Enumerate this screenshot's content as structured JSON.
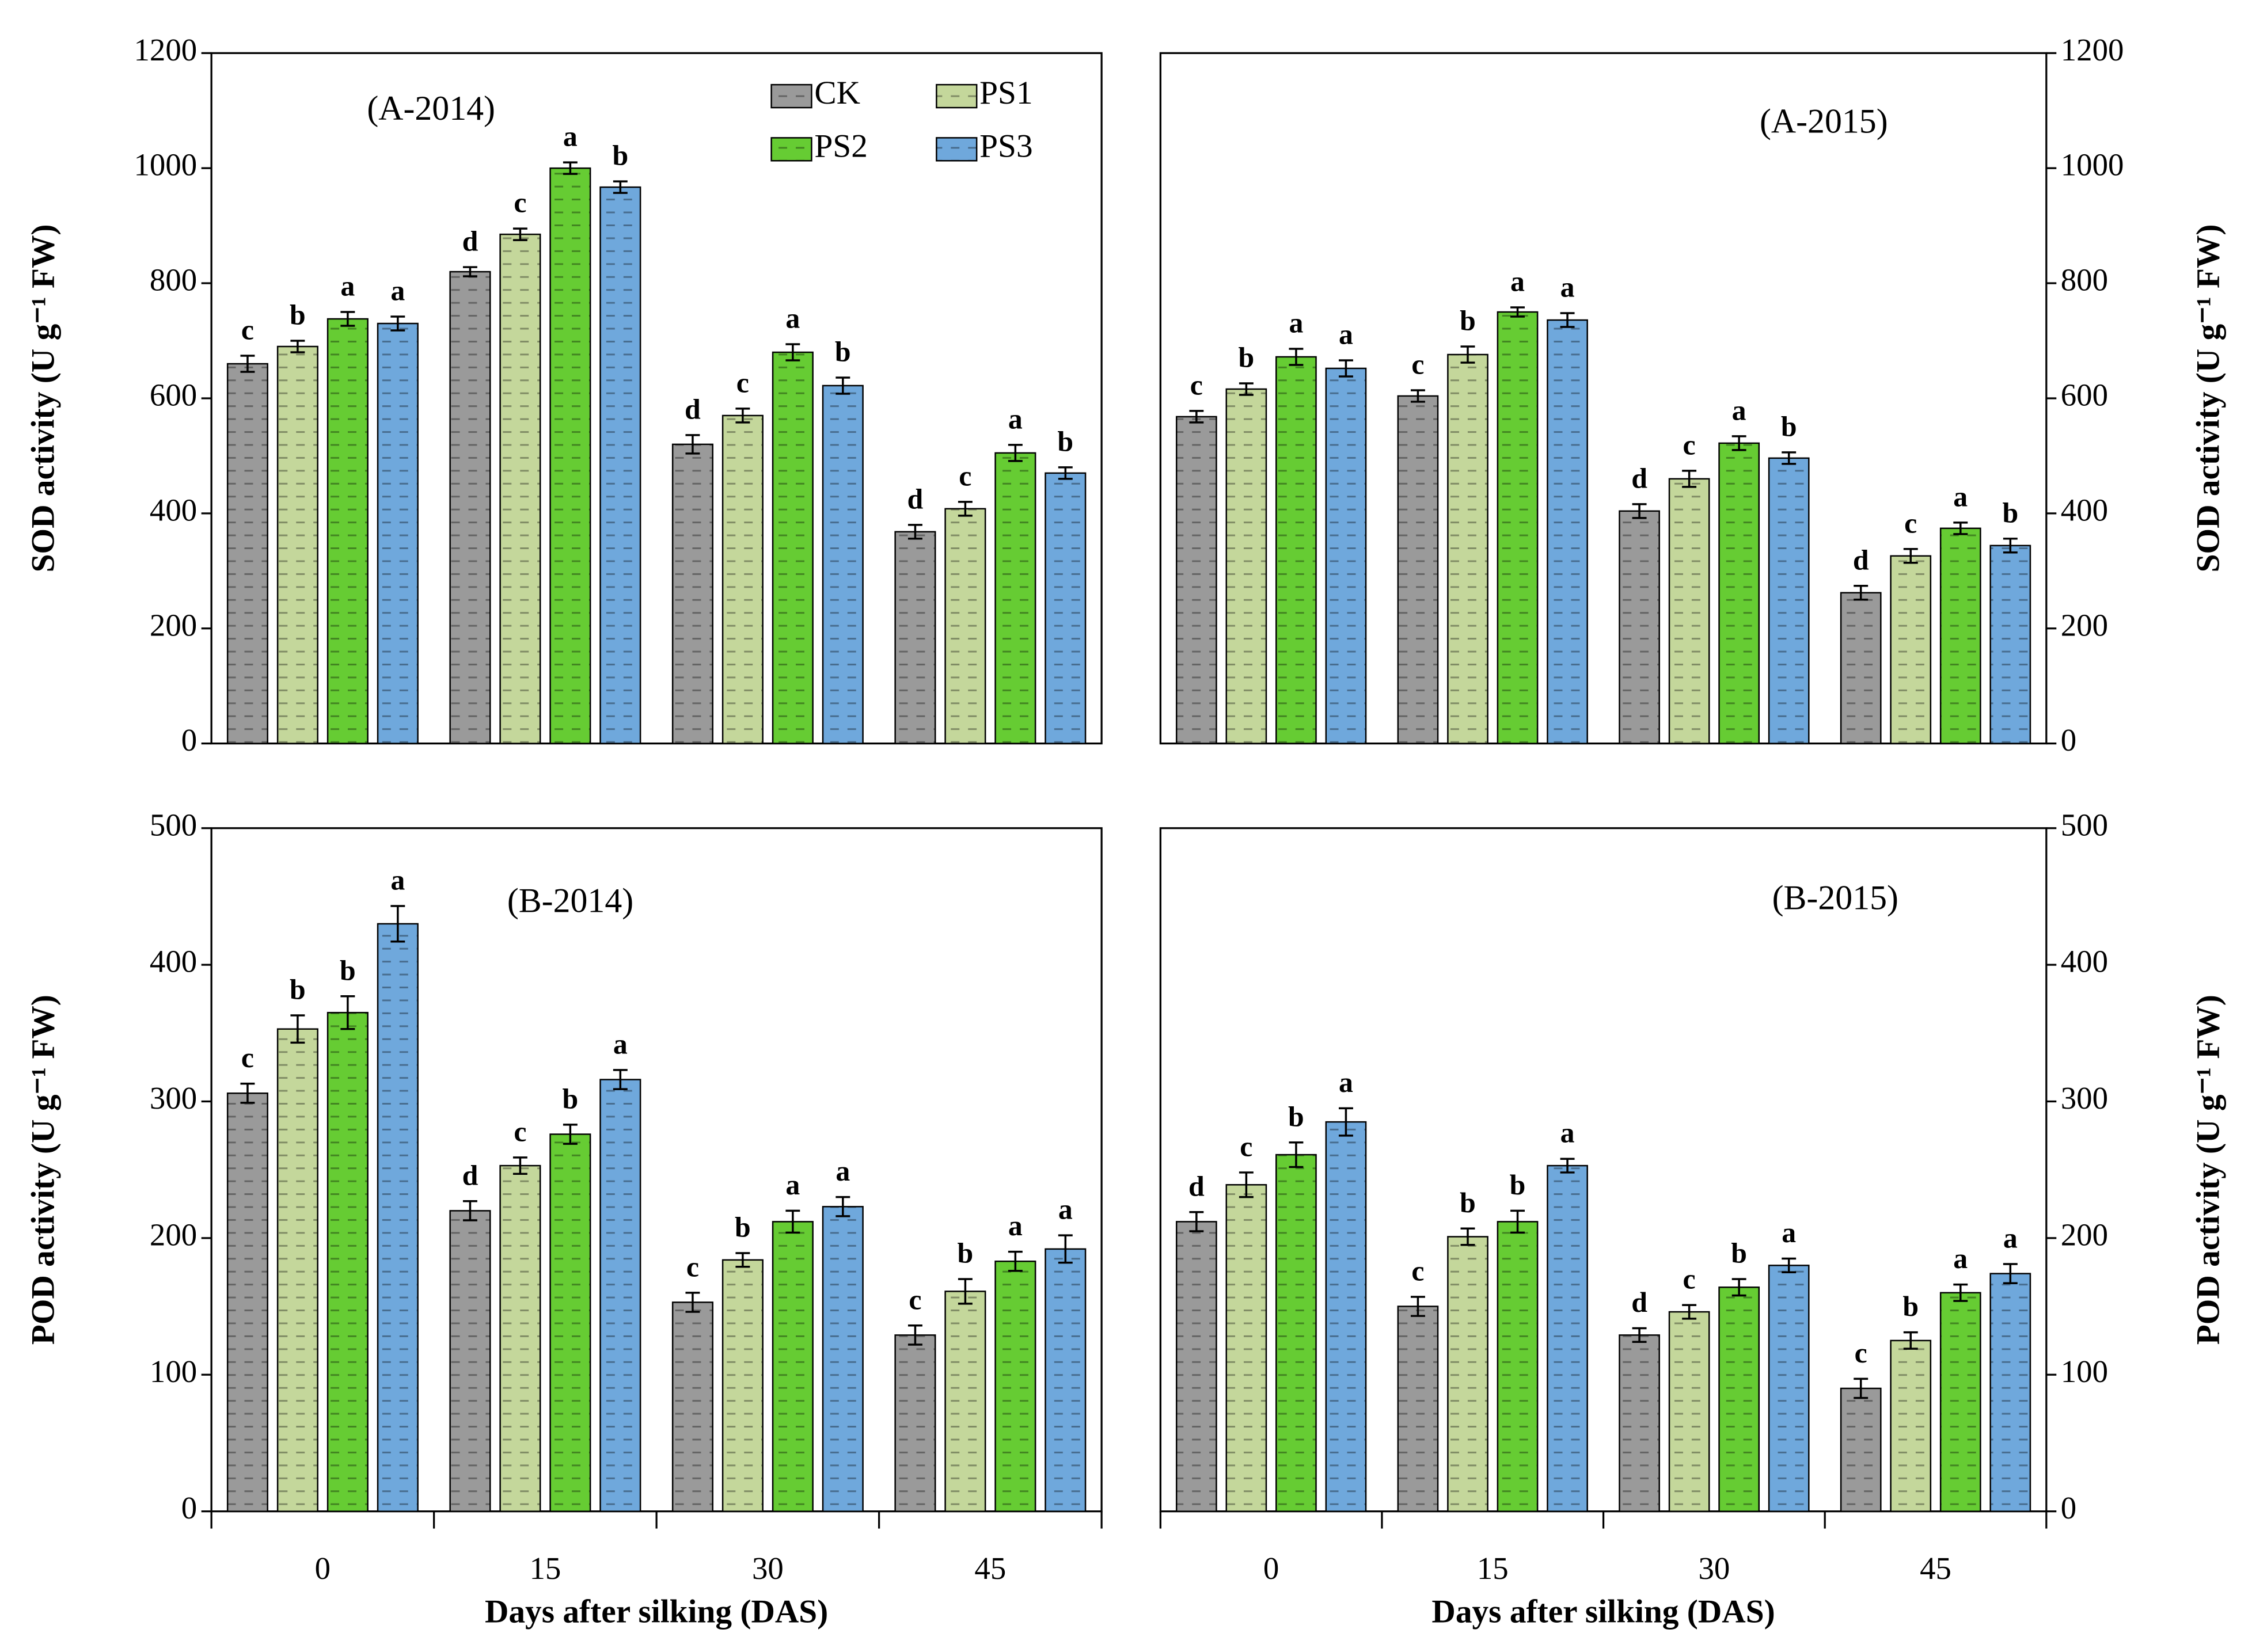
{
  "chart_data": [
    {
      "type": "bar",
      "label": "(A-2014)",
      "ylabel": "SOD activity (U g⁻¹ FW)",
      "y_axis_side": "left",
      "ylim": [
        0,
        1200
      ],
      "yticks": [
        0,
        200,
        400,
        600,
        800,
        1000,
        1200
      ],
      "legend": "top-right",
      "series": [
        {
          "name": "CK",
          "color": "#9a9a9a",
          "values": [
            660,
            820,
            520,
            368
          ],
          "errors": [
            14,
            8,
            16,
            12
          ],
          "letters": [
            "c",
            "d",
            "d",
            "d"
          ]
        },
        {
          "name": "PS1",
          "color": "#c4d79b",
          "values": [
            690,
            885,
            570,
            408
          ],
          "errors": [
            10,
            10,
            12,
            12
          ],
          "letters": [
            "b",
            "c",
            "c",
            "c"
          ]
        },
        {
          "name": "PS2",
          "color": "#66cc33",
          "values": [
            738,
            1000,
            680,
            505
          ],
          "errors": [
            12,
            10,
            14,
            14
          ],
          "letters": [
            "a",
            "a",
            "a",
            "a"
          ]
        },
        {
          "name": "PS3",
          "color": "#6fa8dc",
          "values": [
            730,
            967,
            622,
            470
          ],
          "errors": [
            12,
            10,
            14,
            10
          ],
          "letters": [
            "a",
            "b",
            "b",
            "b"
          ]
        }
      ]
    },
    {
      "type": "bar",
      "label": "(A-2015)",
      "ylabel": "SOD activity (U g⁻¹ FW)",
      "y_axis_side": "right",
      "ylim": [
        0,
        1200
      ],
      "yticks": [
        0,
        200,
        400,
        600,
        800,
        1000,
        1200
      ],
      "series": [
        {
          "color": "#9a9a9a",
          "values": [
            568,
            604,
            404,
            262
          ],
          "errors": [
            10,
            10,
            12,
            12
          ],
          "letters": [
            "c",
            "c",
            "d",
            "d"
          ]
        },
        {
          "color": "#c4d79b",
          "values": [
            616,
            676,
            460,
            326
          ],
          "errors": [
            10,
            14,
            14,
            12
          ],
          "letters": [
            "b",
            "b",
            "c",
            "c"
          ]
        },
        {
          "color": "#66cc33",
          "values": [
            672,
            750,
            522,
            374
          ],
          "errors": [
            14,
            8,
            12,
            10
          ],
          "letters": [
            "a",
            "a",
            "a",
            "a"
          ]
        },
        {
          "color": "#6fa8dc",
          "values": [
            652,
            736,
            496,
            344
          ],
          "errors": [
            14,
            12,
            10,
            12
          ],
          "letters": [
            "a",
            "a",
            "b",
            "b"
          ]
        }
      ]
    },
    {
      "type": "bar",
      "label": "(B-2014)",
      "ylabel": "POD activity (U g⁻¹ FW)",
      "xlabel": "Days after silking (DAS)",
      "y_axis_side": "left",
      "categories": [
        "0",
        "15",
        "30",
        "45"
      ],
      "ylim": [
        0,
        500
      ],
      "yticks": [
        0,
        100,
        200,
        300,
        400,
        500
      ],
      "series": [
        {
          "color": "#9a9a9a",
          "values": [
            306,
            220,
            153,
            129
          ],
          "errors": [
            7,
            7,
            7,
            7
          ],
          "letters": [
            "c",
            "d",
            "c",
            "c"
          ]
        },
        {
          "color": "#c4d79b",
          "values": [
            353,
            253,
            184,
            161
          ],
          "errors": [
            10,
            6,
            5,
            9
          ],
          "letters": [
            "b",
            "c",
            "b",
            "b"
          ]
        },
        {
          "color": "#66cc33",
          "values": [
            365,
            276,
            212,
            183
          ],
          "errors": [
            12,
            7,
            8,
            7
          ],
          "letters": [
            "b",
            "b",
            "a",
            "a"
          ]
        },
        {
          "color": "#6fa8dc",
          "values": [
            430,
            316,
            223,
            192
          ],
          "errors": [
            13,
            7,
            7,
            10
          ],
          "letters": [
            "a",
            "a",
            "a",
            "a"
          ]
        }
      ]
    },
    {
      "type": "bar",
      "label": "(B-2015)",
      "ylabel": "POD activity (U g⁻¹ FW)",
      "xlabel": "Days after silking (DAS)",
      "y_axis_side": "right",
      "categories": [
        "0",
        "15",
        "30",
        "45"
      ],
      "ylim": [
        0,
        500
      ],
      "yticks": [
        0,
        100,
        200,
        300,
        400,
        500
      ],
      "series": [
        {
          "color": "#9a9a9a",
          "values": [
            212,
            150,
            129,
            90
          ],
          "errors": [
            7,
            7,
            5,
            7
          ],
          "letters": [
            "d",
            "c",
            "d",
            "c"
          ]
        },
        {
          "color": "#c4d79b",
          "values": [
            239,
            201,
            146,
            125
          ],
          "errors": [
            9,
            6,
            5,
            6
          ],
          "letters": [
            "c",
            "b",
            "c",
            "b"
          ]
        },
        {
          "color": "#66cc33",
          "values": [
            261,
            212,
            164,
            160
          ],
          "errors": [
            9,
            8,
            6,
            6
          ],
          "letters": [
            "b",
            "b",
            "b",
            "a"
          ]
        },
        {
          "color": "#6fa8dc",
          "values": [
            285,
            253,
            180,
            174
          ],
          "errors": [
            10,
            5,
            5,
            7
          ],
          "letters": [
            "a",
            "a",
            "a",
            "a"
          ]
        }
      ]
    }
  ]
}
